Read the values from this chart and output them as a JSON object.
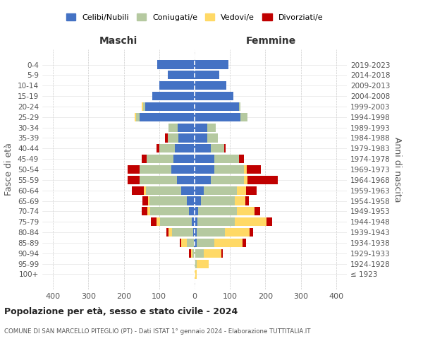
{
  "age_groups": [
    "100+",
    "95-99",
    "90-94",
    "85-89",
    "80-84",
    "75-79",
    "70-74",
    "65-69",
    "60-64",
    "55-59",
    "50-54",
    "45-49",
    "40-44",
    "35-39",
    "30-34",
    "25-29",
    "20-24",
    "15-19",
    "10-14",
    "5-9",
    "0-4"
  ],
  "birth_years": [
    "≤ 1923",
    "1924-1928",
    "1929-1933",
    "1934-1938",
    "1939-1943",
    "1944-1948",
    "1949-1953",
    "1954-1958",
    "1959-1963",
    "1964-1968",
    "1969-1973",
    "1974-1978",
    "1979-1983",
    "1984-1988",
    "1989-1993",
    "1994-1998",
    "1999-2003",
    "2004-2008",
    "2009-2013",
    "2014-2018",
    "2019-2023"
  ],
  "colors": {
    "celibi": "#4472C4",
    "coniugati": "#b5c9a0",
    "vedovi": "#ffd966",
    "divorziati": "#c00000"
  },
  "male": {
    "celibi": [
      0,
      0,
      0,
      2,
      4,
      8,
      16,
      22,
      38,
      50,
      65,
      60,
      55,
      45,
      48,
      155,
      140,
      120,
      100,
      75,
      105
    ],
    "coniugati": [
      0,
      0,
      5,
      20,
      60,
      90,
      110,
      105,
      100,
      105,
      90,
      75,
      45,
      30,
      25,
      10,
      5,
      0,
      0,
      0,
      0
    ],
    "vedovi": [
      0,
      0,
      5,
      15,
      10,
      10,
      8,
      5,
      5,
      0,
      0,
      0,
      0,
      0,
      0,
      5,
      5,
      0,
      0,
      0,
      0
    ],
    "divorziati": [
      0,
      0,
      5,
      5,
      5,
      15,
      15,
      15,
      35,
      35,
      35,
      15,
      8,
      8,
      0,
      0,
      0,
      0,
      0,
      0,
      0
    ]
  },
  "female": {
    "celibi": [
      0,
      0,
      0,
      5,
      5,
      8,
      10,
      18,
      25,
      45,
      55,
      55,
      45,
      35,
      35,
      130,
      125,
      110,
      90,
      70,
      95
    ],
    "coniugati": [
      0,
      5,
      25,
      50,
      80,
      105,
      110,
      95,
      95,
      95,
      85,
      70,
      38,
      30,
      25,
      20,
      5,
      0,
      0,
      0,
      0
    ],
    "vedovi": [
      5,
      35,
      50,
      80,
      70,
      90,
      50,
      30,
      25,
      10,
      8,
      0,
      0,
      0,
      0,
      0,
      0,
      0,
      0,
      0,
      0
    ],
    "divorziati": [
      0,
      0,
      5,
      10,
      10,
      15,
      15,
      10,
      30,
      85,
      40,
      15,
      5,
      0,
      0,
      0,
      0,
      0,
      0,
      0,
      0
    ]
  },
  "xlim": 430,
  "xticks": [
    -400,
    -300,
    -200,
    -100,
    0,
    100,
    200,
    300,
    400
  ],
  "xtick_labels": [
    "400",
    "300",
    "200",
    "100",
    "0",
    "100",
    "200",
    "300",
    "400"
  ],
  "title": "Popolazione per età, sesso e stato civile - 2024",
  "subtitle": "COMUNE DI SAN MARCELLO PITEGLIO (PT) - Dati ISTAT 1° gennaio 2024 - Elaborazione TUTTITALIA.IT",
  "ylabel": "Fasce di età",
  "y2label": "Anni di nascita",
  "xlabel_left": "Maschi",
  "xlabel_right": "Femmine",
  "legend_labels": [
    "Celibi/Nubili",
    "Coniugati/e",
    "Vedovi/e",
    "Divorziati/e"
  ],
  "background_color": "#ffffff",
  "bar_height": 0.82
}
